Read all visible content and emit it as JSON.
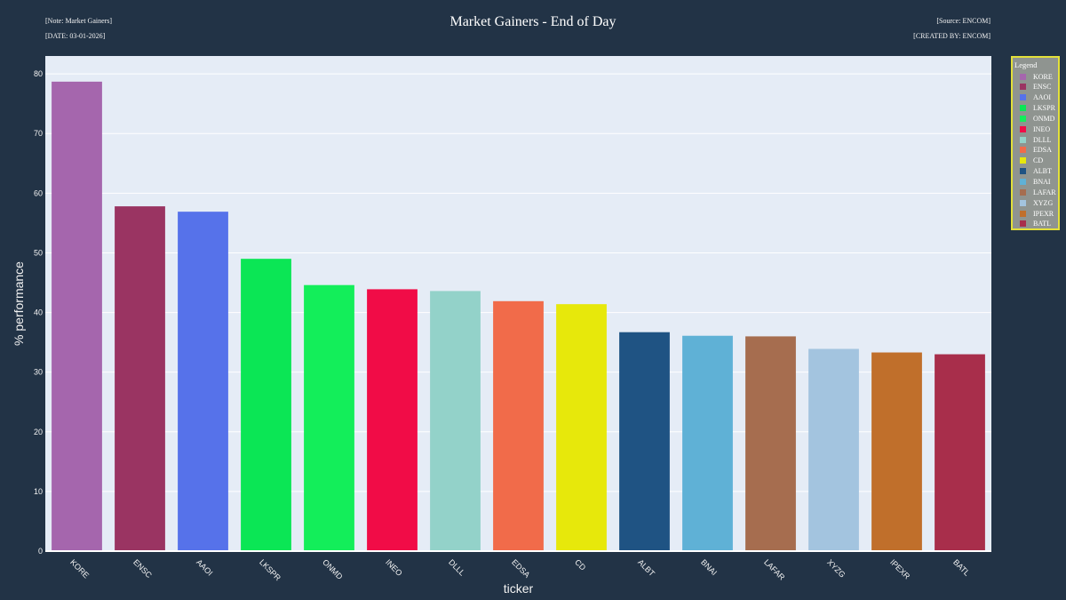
{
  "header": {
    "note": "[Note: Market Gainers]",
    "date": "[DATE: 03-01-2026]",
    "source": "[Source: ENCOM]",
    "created_by": "[CREATED BY: ENCOM]"
  },
  "chart_data": {
    "type": "bar",
    "title": "Market Gainers - End of Day",
    "xlabel": "ticker",
    "ylabel": "% performance",
    "ylim": [
      0,
      83
    ],
    "yticks": [
      0,
      10,
      20,
      30,
      40,
      50,
      60,
      70,
      80
    ],
    "grid": true,
    "legend_title": "Legend",
    "legend_placement": "right",
    "categories": [
      "KORE",
      "ENSC",
      "AAOI",
      "LKSPR",
      "ONMD",
      "INEO",
      "DLLL",
      "EDSA",
      "CD",
      "ALBT",
      "BNAI",
      "LAFAR",
      "XYZG",
      "IPEXR",
      "BATL"
    ],
    "values": [
      78.7,
      57.8,
      56.9,
      49.0,
      44.6,
      43.9,
      43.6,
      41.9,
      41.4,
      36.7,
      36.1,
      36.0,
      33.9,
      33.3,
      33.0
    ],
    "colors": [
      "#a566ad",
      "#9a3462",
      "#5672ea",
      "#0be655",
      "#13ee5a",
      "#f10c47",
      "#93d2c9",
      "#f16b4a",
      "#e7e80b",
      "#1f5383",
      "#5fb1d6",
      "#a66d4f",
      "#a3c4df",
      "#c06f2b",
      "#a82e4b"
    ]
  }
}
